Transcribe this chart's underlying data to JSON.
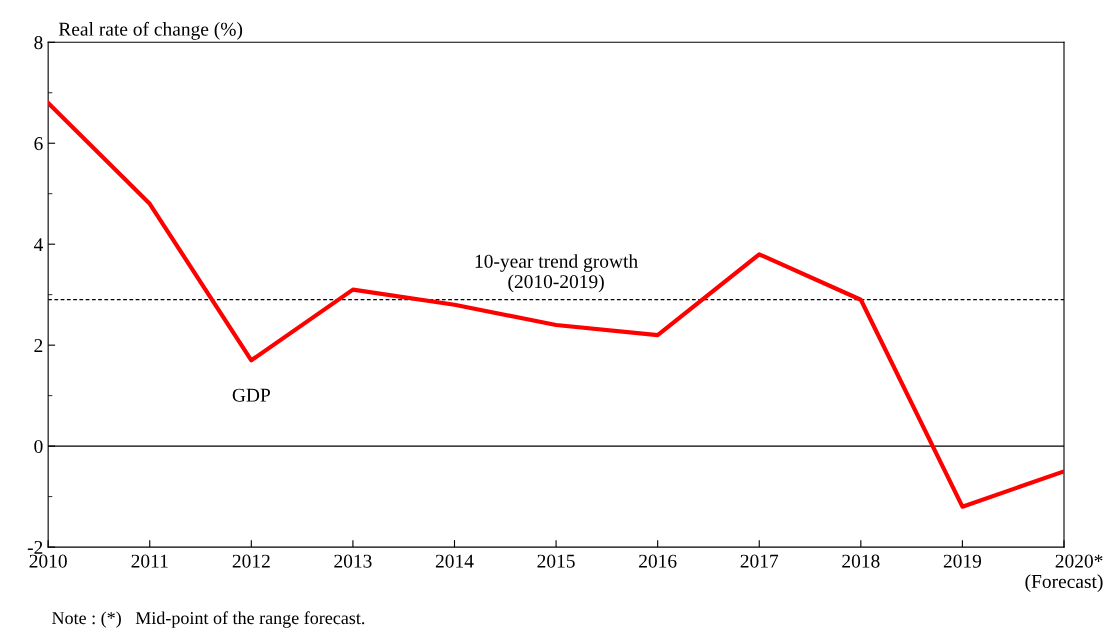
{
  "chart_data": {
    "type": "line",
    "ylabel": "Real rate of change (%)",
    "x": [
      2010,
      2011,
      2012,
      2013,
      2014,
      2015,
      2016,
      2017,
      2018,
      2019,
      2020
    ],
    "series": [
      {
        "color": "#ff0000",
        "values": [
          6.8,
          4.8,
          1.7,
          3.1,
          2.8,
          2.4,
          2.2,
          3.8,
          2.9,
          -1.2,
          -0.5
        ]
      }
    ],
    "xlim": [
      2010,
      2020
    ],
    "xticks": [
      2010,
      2011,
      2012,
      2013,
      2014,
      2015,
      2016,
      2017,
      2018,
      2019,
      {
        "value": 2020,
        "label": "2020*\n(Forecast)"
      }
    ],
    "ylim": [
      -2,
      8
    ],
    "yticks": [
      -2,
      0,
      2,
      4,
      6,
      8
    ],
    "ref_lines": [
      {
        "axis": "y",
        "value": 0,
        "color": "#000000",
        "line_style": "solid"
      },
      {
        "axis": "y",
        "value": 2.9,
        "label": "10-year trend growth\n(2010-2019)",
        "color": "#000000",
        "line_style": "dashed"
      }
    ],
    "annotations": [
      {
        "text": "GDP",
        "x": 2012,
        "y": 1.7
      },
      "Note : (*)   Mid-point of the range forecast."
    ],
    "grid": false,
    "marker": "none",
    "line_style": "solid"
  }
}
